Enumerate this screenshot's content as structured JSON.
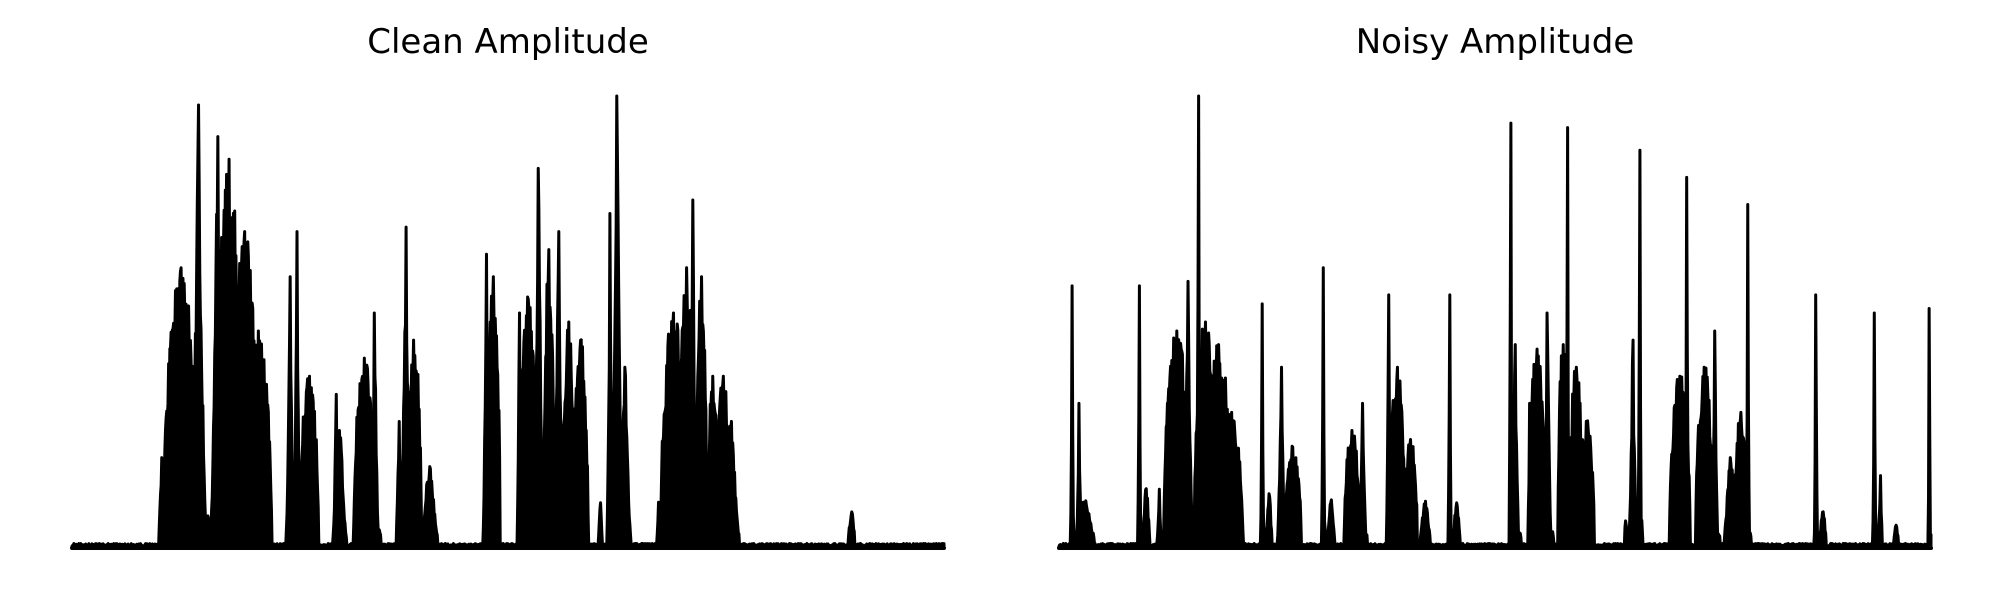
{
  "chart_data": [
    {
      "type": "area",
      "title": "Clean Amplitude",
      "xlabel": "",
      "ylabel": "",
      "ylim": [
        0,
        1
      ],
      "axes_visible": false,
      "grid": false,
      "line_color": "#000000",
      "fill_color": "#000000",
      "bursts": [
        {
          "x": 0.103,
          "w": 0.006,
          "h": 0.2,
          "shape": "bump"
        },
        {
          "x": 0.125,
          "w": 0.04,
          "h": 0.62,
          "shape": "plateau"
        },
        {
          "x": 0.145,
          "w": 0.02,
          "h": 0.98,
          "shape": "spike"
        },
        {
          "x": 0.167,
          "w": 0.018,
          "h": 0.91,
          "shape": "spike"
        },
        {
          "x": 0.18,
          "w": 0.03,
          "h": 0.86,
          "shape": "plateau"
        },
        {
          "x": 0.198,
          "w": 0.03,
          "h": 0.7,
          "shape": "plateau"
        },
        {
          "x": 0.214,
          "w": 0.03,
          "h": 0.48,
          "shape": "plateau"
        },
        {
          "x": 0.25,
          "w": 0.01,
          "h": 0.6,
          "shape": "spike"
        },
        {
          "x": 0.258,
          "w": 0.008,
          "h": 0.7,
          "shape": "spike"
        },
        {
          "x": 0.272,
          "w": 0.022,
          "h": 0.38,
          "shape": "plateau"
        },
        {
          "x": 0.303,
          "w": 0.008,
          "h": 0.34,
          "shape": "spike"
        },
        {
          "x": 0.307,
          "w": 0.012,
          "h": 0.26,
          "shape": "bump"
        },
        {
          "x": 0.335,
          "w": 0.024,
          "h": 0.42,
          "shape": "plateau"
        },
        {
          "x": 0.347,
          "w": 0.01,
          "h": 0.52,
          "shape": "spike"
        },
        {
          "x": 0.375,
          "w": 0.008,
          "h": 0.28,
          "shape": "spike"
        },
        {
          "x": 0.383,
          "w": 0.014,
          "h": 0.71,
          "shape": "spike"
        },
        {
          "x": 0.392,
          "w": 0.018,
          "h": 0.46,
          "shape": "plateau"
        },
        {
          "x": 0.41,
          "w": 0.016,
          "h": 0.18,
          "shape": "bump"
        },
        {
          "x": 0.475,
          "w": 0.008,
          "h": 0.65,
          "shape": "spike"
        },
        {
          "x": 0.483,
          "w": 0.016,
          "h": 0.6,
          "shape": "plateau"
        },
        {
          "x": 0.513,
          "w": 0.006,
          "h": 0.52,
          "shape": "spike"
        },
        {
          "x": 0.523,
          "w": 0.02,
          "h": 0.55,
          "shape": "plateau"
        },
        {
          "x": 0.535,
          "w": 0.014,
          "h": 0.84,
          "shape": "spike"
        },
        {
          "x": 0.547,
          "w": 0.012,
          "h": 0.66,
          "shape": "plateau"
        },
        {
          "x": 0.558,
          "w": 0.014,
          "h": 0.7,
          "shape": "spike"
        },
        {
          "x": 0.57,
          "w": 0.014,
          "h": 0.5,
          "shape": "plateau"
        },
        {
          "x": 0.583,
          "w": 0.018,
          "h": 0.46,
          "shape": "plateau"
        },
        {
          "x": 0.606,
          "w": 0.004,
          "h": 0.1,
          "shape": "bump"
        },
        {
          "x": 0.617,
          "w": 0.008,
          "h": 0.74,
          "shape": "spike"
        },
        {
          "x": 0.625,
          "w": 0.014,
          "h": 1.0,
          "shape": "spike"
        },
        {
          "x": 0.634,
          "w": 0.01,
          "h": 0.4,
          "shape": "bump"
        },
        {
          "x": 0.673,
          "w": 0.004,
          "h": 0.1,
          "shape": "bump"
        },
        {
          "x": 0.69,
          "w": 0.03,
          "h": 0.52,
          "shape": "plateau"
        },
        {
          "x": 0.705,
          "w": 0.022,
          "h": 0.62,
          "shape": "plateau"
        },
        {
          "x": 0.712,
          "w": 0.01,
          "h": 0.77,
          "shape": "spike"
        },
        {
          "x": 0.722,
          "w": 0.012,
          "h": 0.6,
          "shape": "plateau"
        },
        {
          "x": 0.735,
          "w": 0.012,
          "h": 0.38,
          "shape": "plateau"
        },
        {
          "x": 0.747,
          "w": 0.016,
          "h": 0.38,
          "shape": "plateau"
        },
        {
          "x": 0.756,
          "w": 0.014,
          "h": 0.28,
          "shape": "bump"
        },
        {
          "x": 0.894,
          "w": 0.008,
          "h": 0.08,
          "shape": "bump"
        }
      ]
    },
    {
      "type": "area",
      "title": "Noisy Amplitude",
      "xlabel": "",
      "ylabel": "",
      "ylim": [
        0,
        1
      ],
      "axes_visible": false,
      "grid": false,
      "line_color": "#000000",
      "fill_color": "#000000",
      "bursts": [
        {
          "x": 0.015,
          "w": 0.004,
          "h": 0.58,
          "shape": "spike"
        },
        {
          "x": 0.023,
          "w": 0.006,
          "h": 0.32,
          "shape": "spike"
        },
        {
          "x": 0.03,
          "w": 0.02,
          "h": 0.1,
          "shape": "bump"
        },
        {
          "x": 0.092,
          "w": 0.004,
          "h": 0.58,
          "shape": "spike"
        },
        {
          "x": 0.1,
          "w": 0.008,
          "h": 0.13,
          "shape": "bump"
        },
        {
          "x": 0.115,
          "w": 0.006,
          "h": 0.13,
          "shape": "spike"
        },
        {
          "x": 0.135,
          "w": 0.03,
          "h": 0.48,
          "shape": "plateau"
        },
        {
          "x": 0.148,
          "w": 0.012,
          "h": 0.59,
          "shape": "spike"
        },
        {
          "x": 0.16,
          "w": 0.004,
          "h": 1.0,
          "shape": "spike"
        },
        {
          "x": 0.168,
          "w": 0.026,
          "h": 0.5,
          "shape": "plateau"
        },
        {
          "x": 0.183,
          "w": 0.03,
          "h": 0.45,
          "shape": "plateau"
        },
        {
          "x": 0.198,
          "w": 0.026,
          "h": 0.3,
          "shape": "plateau"
        },
        {
          "x": 0.233,
          "w": 0.004,
          "h": 0.54,
          "shape": "spike"
        },
        {
          "x": 0.241,
          "w": 0.006,
          "h": 0.12,
          "shape": "bump"
        },
        {
          "x": 0.255,
          "w": 0.01,
          "h": 0.4,
          "shape": "spike"
        },
        {
          "x": 0.268,
          "w": 0.02,
          "h": 0.22,
          "shape": "plateau"
        },
        {
          "x": 0.303,
          "w": 0.004,
          "h": 0.62,
          "shape": "spike"
        },
        {
          "x": 0.312,
          "w": 0.008,
          "h": 0.1,
          "shape": "bump"
        },
        {
          "x": 0.336,
          "w": 0.018,
          "h": 0.26,
          "shape": "plateau"
        },
        {
          "x": 0.348,
          "w": 0.01,
          "h": 0.32,
          "shape": "spike"
        },
        {
          "x": 0.378,
          "w": 0.006,
          "h": 0.56,
          "shape": "spike"
        },
        {
          "x": 0.388,
          "w": 0.018,
          "h": 0.4,
          "shape": "plateau"
        },
        {
          "x": 0.403,
          "w": 0.016,
          "h": 0.24,
          "shape": "plateau"
        },
        {
          "x": 0.42,
          "w": 0.012,
          "h": 0.1,
          "shape": "bump"
        },
        {
          "x": 0.448,
          "w": 0.004,
          "h": 0.56,
          "shape": "spike"
        },
        {
          "x": 0.456,
          "w": 0.008,
          "h": 0.1,
          "shape": "bump"
        },
        {
          "x": 0.518,
          "w": 0.004,
          "h": 0.94,
          "shape": "spike"
        },
        {
          "x": 0.523,
          "w": 0.01,
          "h": 0.45,
          "shape": "spike"
        },
        {
          "x": 0.54,
          "w": 0.004,
          "h": 0.32,
          "shape": "spike"
        },
        {
          "x": 0.548,
          "w": 0.02,
          "h": 0.44,
          "shape": "plateau"
        },
        {
          "x": 0.56,
          "w": 0.01,
          "h": 0.52,
          "shape": "spike"
        },
        {
          "x": 0.583,
          "w": 0.004,
          "h": 0.93,
          "shape": "spike"
        },
        {
          "x": 0.578,
          "w": 0.012,
          "h": 0.45,
          "shape": "plateau"
        },
        {
          "x": 0.593,
          "w": 0.016,
          "h": 0.4,
          "shape": "plateau"
        },
        {
          "x": 0.605,
          "w": 0.018,
          "h": 0.28,
          "shape": "plateau"
        },
        {
          "x": 0.65,
          "w": 0.004,
          "h": 0.06,
          "shape": "bump"
        },
        {
          "x": 0.658,
          "w": 0.01,
          "h": 0.46,
          "shape": "spike"
        },
        {
          "x": 0.666,
          "w": 0.004,
          "h": 0.88,
          "shape": "spike"
        },
        {
          "x": 0.72,
          "w": 0.004,
          "h": 0.82,
          "shape": "spike"
        },
        {
          "x": 0.712,
          "w": 0.024,
          "h": 0.38,
          "shape": "plateau"
        },
        {
          "x": 0.74,
          "w": 0.02,
          "h": 0.4,
          "shape": "plateau"
        },
        {
          "x": 0.752,
          "w": 0.008,
          "h": 0.48,
          "shape": "spike"
        },
        {
          "x": 0.79,
          "w": 0.004,
          "h": 0.76,
          "shape": "spike"
        },
        {
          "x": 0.782,
          "w": 0.016,
          "h": 0.3,
          "shape": "plateau"
        },
        {
          "x": 0.77,
          "w": 0.012,
          "h": 0.2,
          "shape": "bump"
        },
        {
          "x": 0.868,
          "w": 0.004,
          "h": 0.56,
          "shape": "spike"
        },
        {
          "x": 0.876,
          "w": 0.008,
          "h": 0.08,
          "shape": "bump"
        },
        {
          "x": 0.935,
          "w": 0.004,
          "h": 0.52,
          "shape": "spike"
        },
        {
          "x": 0.942,
          "w": 0.006,
          "h": 0.16,
          "shape": "spike"
        },
        {
          "x": 0.96,
          "w": 0.006,
          "h": 0.05,
          "shape": "bump"
        },
        {
          "x": 0.998,
          "w": 0.003,
          "h": 0.53,
          "shape": "spike"
        }
      ]
    }
  ]
}
